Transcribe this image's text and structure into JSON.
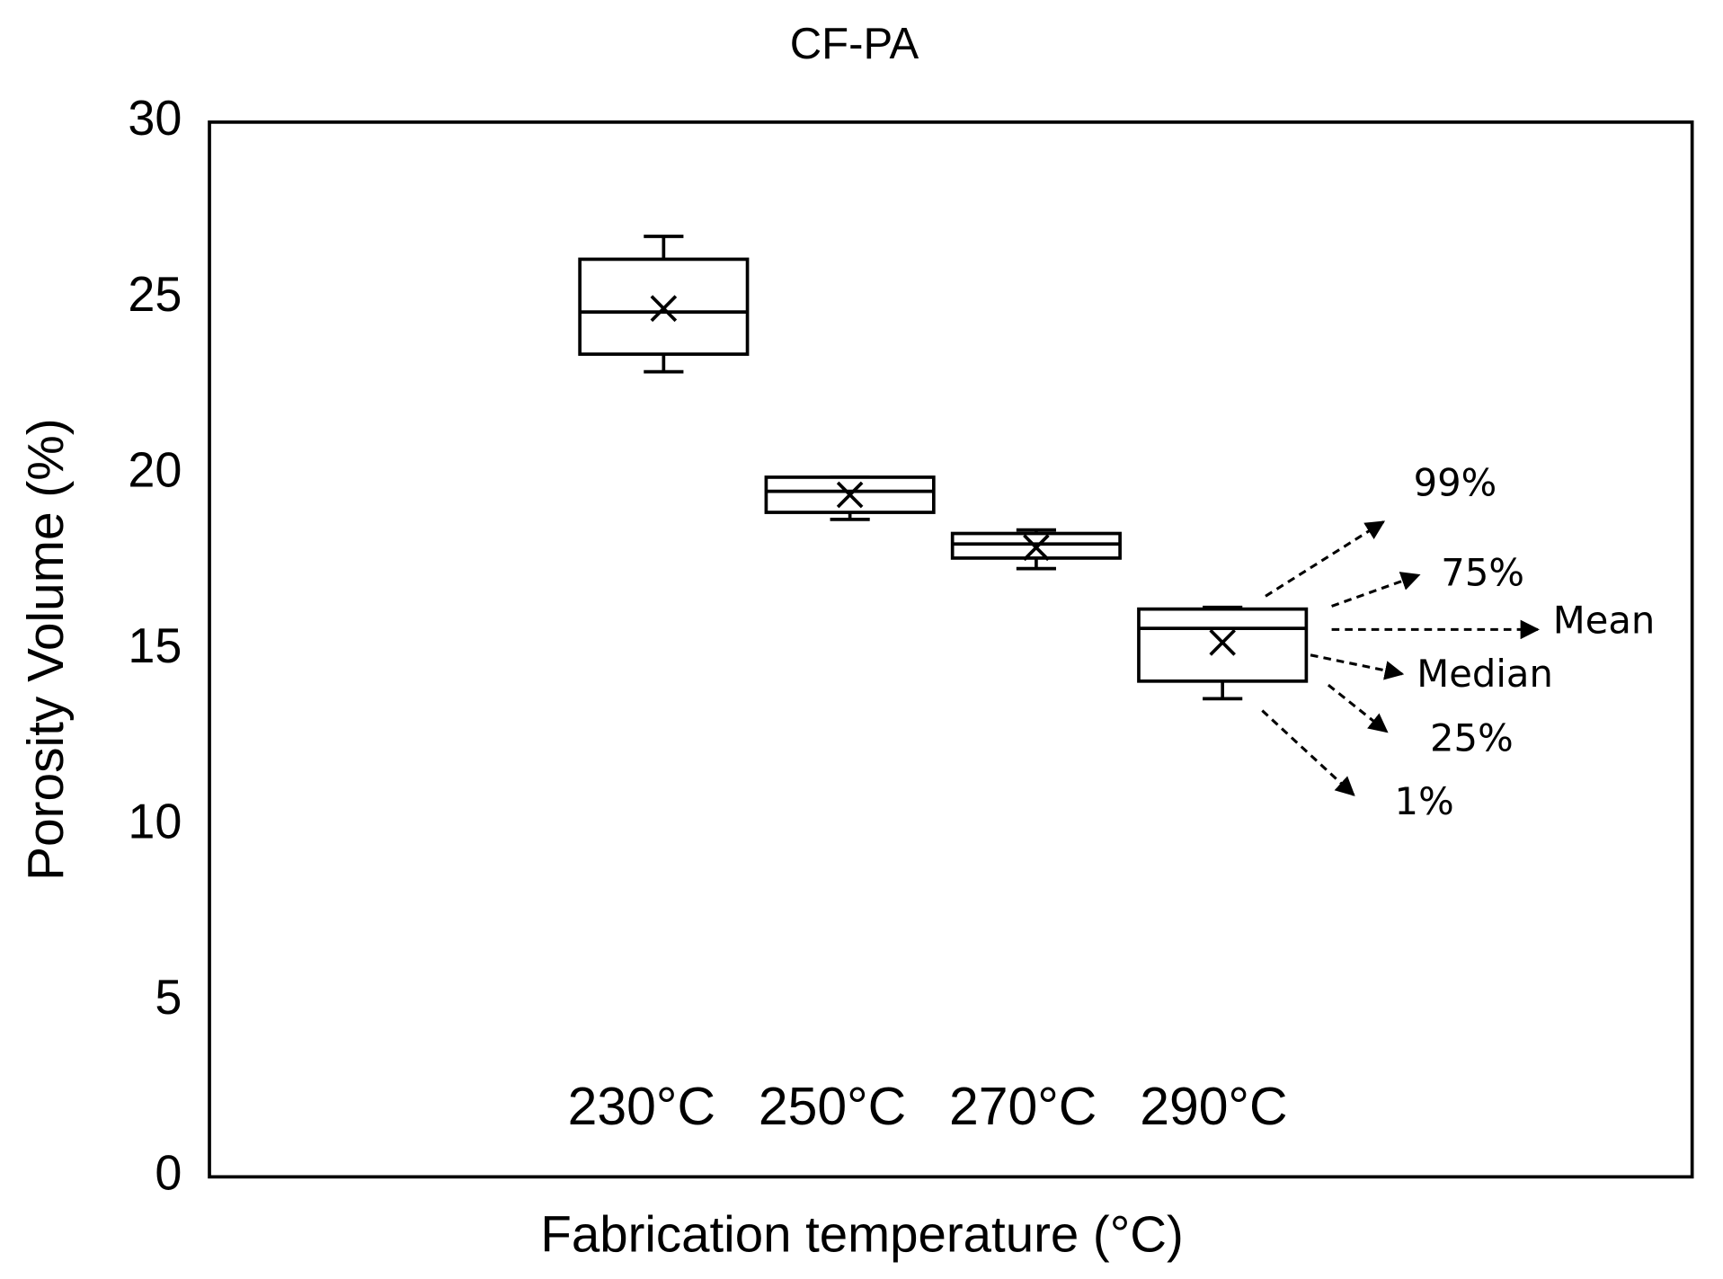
{
  "chart_data": {
    "type": "box",
    "title": "CF-PA",
    "x_label": "Fabrication temperature (°C)",
    "y_label": "Porosity Volume (%)",
    "categories": [
      "230°C",
      "250°C",
      "270°C",
      "290°C"
    ],
    "min": [
      22.9,
      18.7,
      17.3,
      13.6
    ],
    "q1": [
      23.4,
      18.9,
      17.6,
      14.1
    ],
    "median": [
      24.6,
      19.5,
      18.0,
      15.6
    ],
    "q3": [
      26.1,
      19.9,
      18.3,
      16.15
    ],
    "max": [
      26.75,
      19.9,
      18.4,
      16.2
    ],
    "mean": [
      24.7,
      19.4,
      17.9,
      15.2
    ],
    "color": "#000000",
    "ylim": [
      0,
      30
    ],
    "yticks": [
      0,
      5,
      10,
      15,
      20,
      25,
      30
    ],
    "grid": false,
    "annotations": [
      "99%",
      "75%",
      "Mean",
      "Median",
      "25%",
      "1%"
    ]
  }
}
